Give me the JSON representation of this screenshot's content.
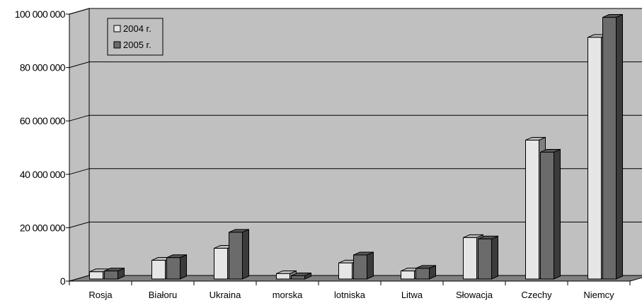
{
  "chart_data": {
    "type": "bar",
    "title": "",
    "xlabel": "",
    "ylabel": "",
    "categories": [
      "Rosja",
      "Białoru",
      "Ukraina",
      "morska",
      "lotniska",
      "Litwa",
      "Słowacja",
      "Czechy",
      "Niemcy"
    ],
    "series": [
      {
        "name": "2004 r.",
        "color": "#e6e6e6",
        "values": [
          2700000,
          7000000,
          11500000,
          2000000,
          6000000,
          3000000,
          15500000,
          52000000,
          90500000
        ]
      },
      {
        "name": "2005 r.",
        "color": "#6b6b6b",
        "values": [
          3000000,
          8000000,
          17500000,
          1200000,
          9000000,
          4000000,
          15000000,
          47500000,
          98000000
        ]
      }
    ],
    "ylim": [
      0,
      100000000
    ],
    "yticks": [
      {
        "value": 0,
        "label": "0"
      },
      {
        "value": 20000000,
        "label": "20 000 000"
      },
      {
        "value": 40000000,
        "label": "40 000 000"
      },
      {
        "value": 60000000,
        "label": "60 000 000"
      },
      {
        "value": 80000000,
        "label": "80 000 000"
      },
      {
        "value": 100000000,
        "label": "100 000 000"
      }
    ],
    "grid": true,
    "legend": "top-left",
    "plot_background": "#c0c0c0",
    "floor_color": "#808080"
  }
}
